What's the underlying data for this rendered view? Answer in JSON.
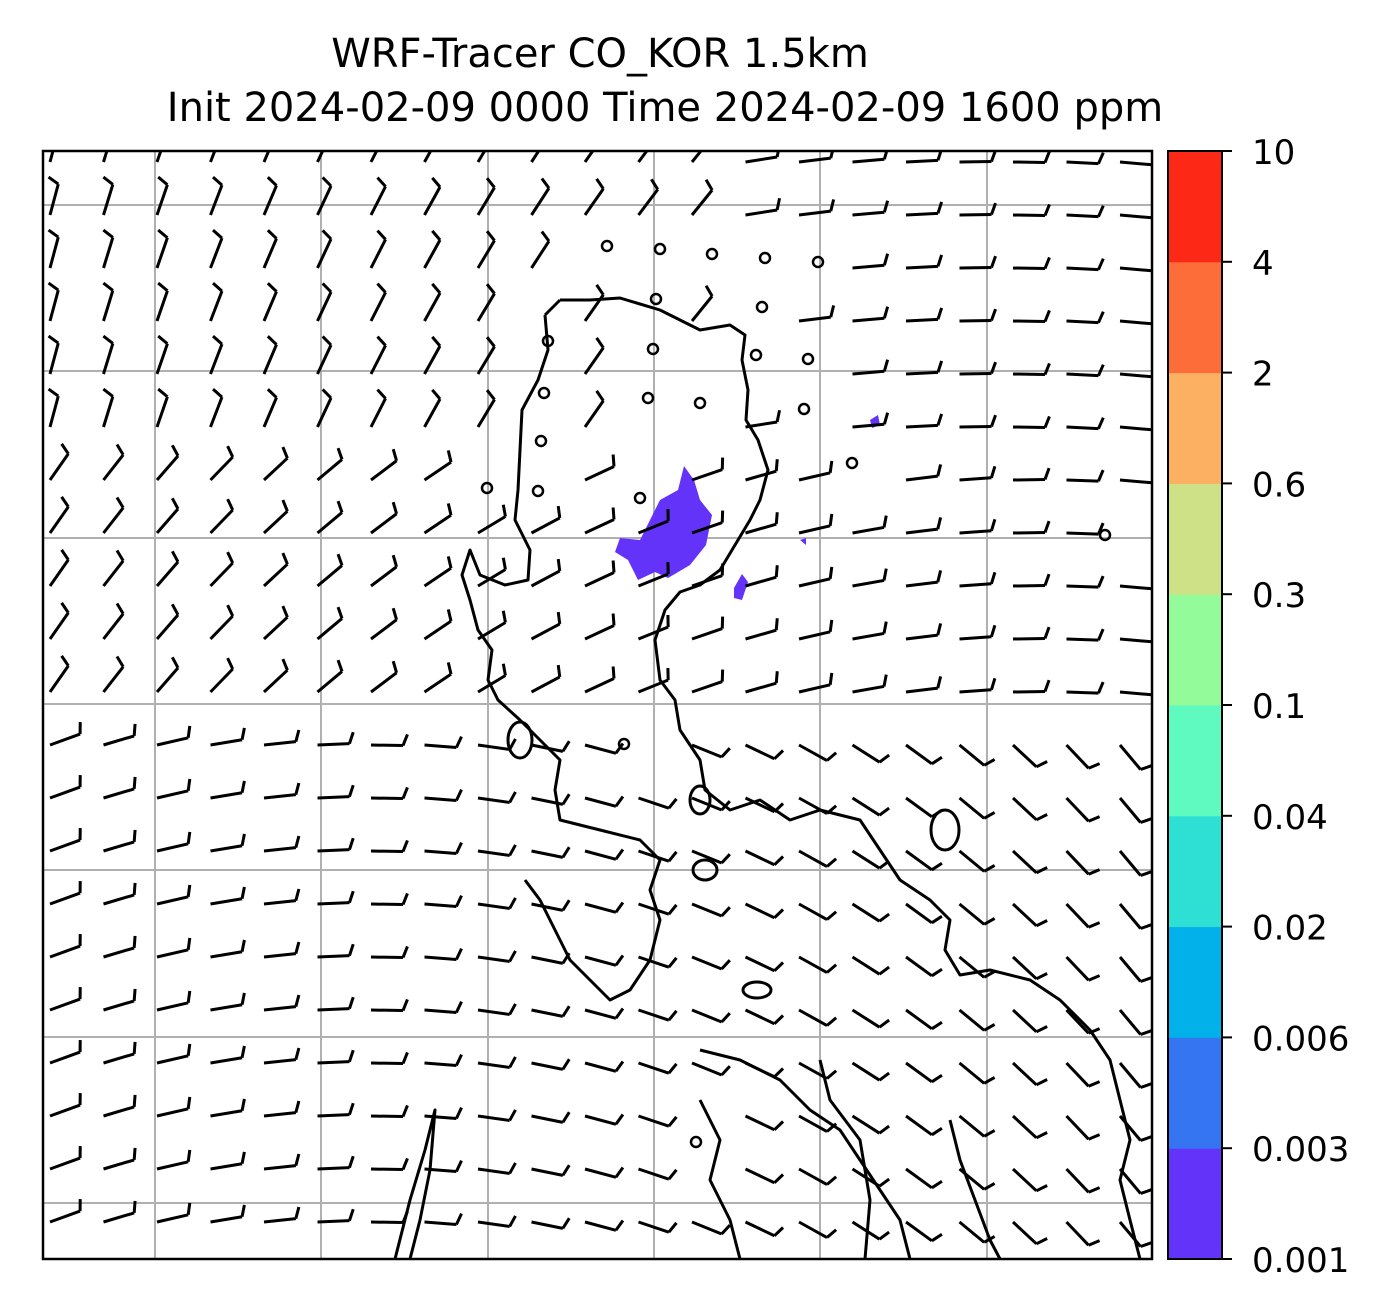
{
  "title_line1": "WRF-Tracer CO_KOR 1.5km",
  "title_line2": "Init 2024-02-09 0000 Time 2024-02-09 1600 ppm",
  "chart_data": {
    "type": "heatmap",
    "title": "WRF-Tracer CO_KOR 1.5km",
    "subtitle": "Init 2024-02-09 0000 Time 2024-02-09 1600 ppm",
    "grid": true,
    "colorbar": {
      "placement": "right",
      "levels": [
        "0.001",
        "0.003",
        "0.006",
        "0.02",
        "0.04",
        "0.1",
        "0.3",
        "0.6",
        "2",
        "4",
        "10"
      ],
      "colors": [
        "#6433fa",
        "#3675f2",
        "#02b0ea",
        "#2ee0d4",
        "#5efac0",
        "#93fb99",
        "#cfe187",
        "#fcb062",
        "#fd6d3a",
        "#fd2815"
      ]
    },
    "concentration_patches": [
      {
        "level_bin": "0.001-0.003",
        "color": "#6433fa"
      }
    ],
    "overlays": [
      "wind barbs",
      "coastlines"
    ]
  }
}
